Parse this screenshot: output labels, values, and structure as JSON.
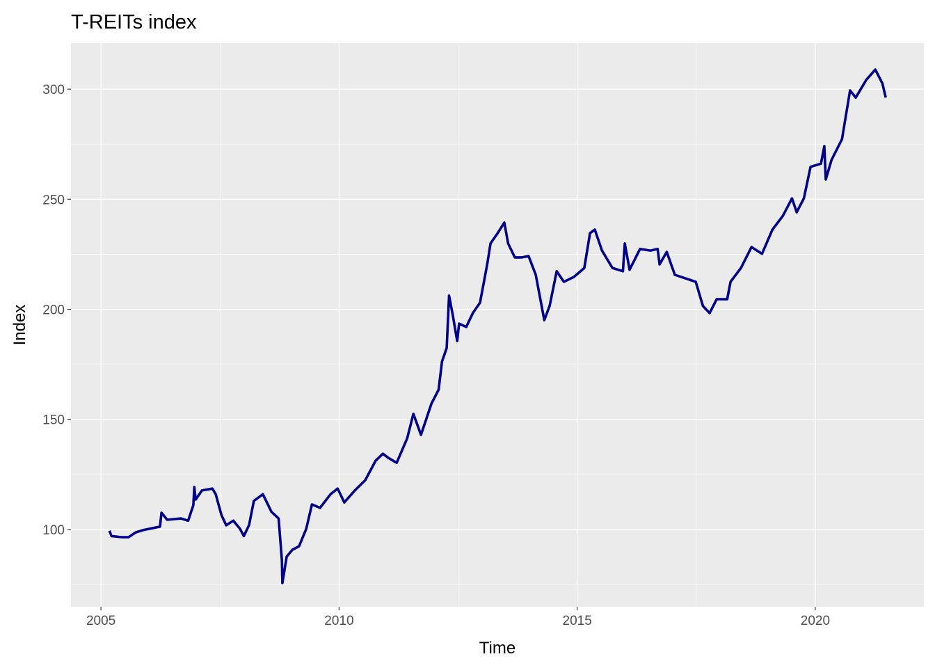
{
  "chart_data": {
    "type": "line",
    "title": "T-REITs index",
    "xlabel": "Time",
    "ylabel": "Index",
    "xlim": [
      2004.37,
      2022.28
    ],
    "ylim": [
      64.9,
      320.9
    ],
    "x_ticks": [
      2005,
      2010,
      2015,
      2020
    ],
    "x_tick_labels": [
      "2005",
      "2010",
      "2015",
      "2020"
    ],
    "y_ticks": [
      100,
      150,
      200,
      250,
      300
    ],
    "y_tick_labels": [
      "100",
      "150",
      "200",
      "250",
      "300"
    ],
    "grid": true,
    "legend": "none",
    "colors": {
      "line": "#00008B",
      "panel": "#EBEBEB",
      "grid": "#FFFFFF"
    },
    "series": [
      {
        "x": [
          2005.18,
          2005.22,
          2005.44,
          2005.58,
          2005.73,
          2005.88,
          2006.24,
          2006.27,
          2006.39,
          2006.68,
          2006.83,
          2006.94,
          2006.96,
          2006.99,
          2007.12,
          2007.34,
          2007.41,
          2007.53,
          2007.63,
          2007.78,
          2007.92,
          2008.0,
          2008.11,
          2008.21,
          2008.4,
          2008.58,
          2008.73,
          2008.8,
          2008.81,
          2008.9,
          2009.02,
          2009.16,
          2009.31,
          2009.43,
          2009.6,
          2009.82,
          2009.97,
          2010.11,
          2010.33,
          2010.55,
          2010.77,
          2010.92,
          2011.03,
          2011.21,
          2011.43,
          2011.56,
          2011.72,
          2011.94,
          2012.09,
          2012.16,
          2012.26,
          2012.31,
          2012.38,
          2012.48,
          2012.52,
          2012.67,
          2012.81,
          2012.96,
          2013.11,
          2013.18,
          2013.33,
          2013.47,
          2013.55,
          2013.69,
          2013.84,
          2013.98,
          2014.13,
          2014.31,
          2014.42,
          2014.57,
          2014.72,
          2014.93,
          2015.15,
          2015.27,
          2015.37,
          2015.52,
          2015.74,
          2015.96,
          2016.0,
          2016.1,
          2016.32,
          2016.54,
          2016.69,
          2016.73,
          2016.88,
          2017.05,
          2017.27,
          2017.49,
          2017.64,
          2017.78,
          2017.93,
          2018.15,
          2018.22,
          2018.44,
          2018.66,
          2018.88,
          2019.1,
          2019.32,
          2019.51,
          2019.61,
          2019.76,
          2019.9,
          2020.12,
          2020.19,
          2020.22,
          2020.34,
          2020.56,
          2020.73,
          2020.85,
          2021.07,
          2021.26,
          2021.41,
          2021.48
        ],
        "y": [
          99.4,
          97,
          96.5,
          96.5,
          98.7,
          99.7,
          101.3,
          107.6,
          104.4,
          105,
          104,
          111,
          119.3,
          113.6,
          117.7,
          118.6,
          116,
          106.6,
          101.9,
          104,
          100.3,
          97,
          102,
          113,
          116,
          108,
          105,
          86,
          75.7,
          87.7,
          90.8,
          92.4,
          100.3,
          111.4,
          109.8,
          116,
          118.6,
          112.3,
          117.7,
          122.4,
          131.3,
          134.4,
          132.6,
          130.3,
          141.4,
          152.5,
          143,
          157.2,
          163.5,
          176.2,
          182.5,
          206.2,
          198.3,
          185.6,
          193.5,
          192,
          198.3,
          203,
          220.4,
          229.9,
          234.6,
          239.4,
          229.9,
          223.6,
          223.6,
          224.2,
          215.7,
          195.1,
          201.5,
          217.3,
          212.5,
          214.7,
          218.8,
          234.6,
          236.2,
          226.7,
          218.8,
          217.3,
          229.9,
          218,
          227.4,
          226.7,
          227.4,
          220.4,
          226.1,
          215.7,
          214.1,
          212.5,
          201.5,
          198.3,
          204.6,
          204.6,
          212.5,
          218.8,
          228.3,
          225.2,
          236.2,
          242.5,
          250.4,
          244.1,
          250.4,
          264.7,
          266.2,
          274.1,
          259,
          267.8,
          277.3,
          299.4,
          296.2,
          304.2,
          308.9,
          302.6,
          296.2
        ]
      }
    ]
  }
}
